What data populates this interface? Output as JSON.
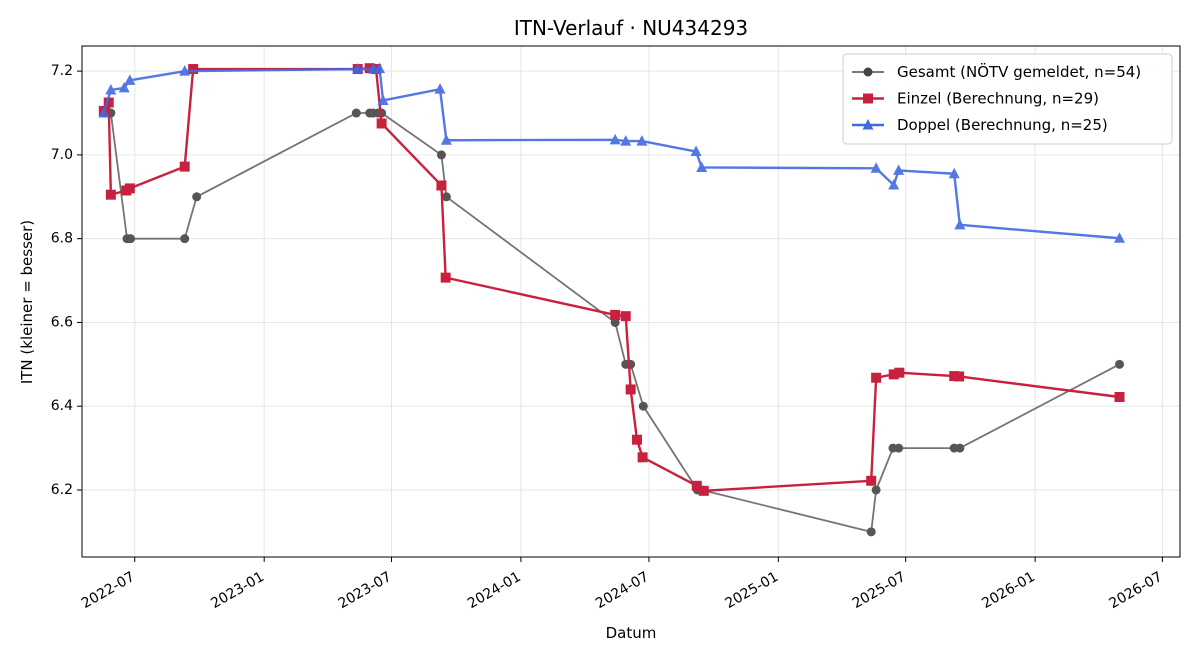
{
  "chart_data": {
    "type": "line",
    "title": "ITN-Verlauf · NU434293",
    "xlabel": "Datum",
    "ylabel": "ITN  (kleiner = besser)",
    "x_axis": "date",
    "xlim": [
      "2022-04-17",
      "2026-07-26"
    ],
    "ylim": [
      6.04,
      7.26
    ],
    "x_ticks": [
      "2022-07-01",
      "2023-01-01",
      "2023-07-01",
      "2024-01-01",
      "2024-07-01",
      "2025-01-01",
      "2025-07-01",
      "2026-01-01",
      "2026-07-01"
    ],
    "x_tick_labels": [
      "2022-07",
      "2023-01",
      "2023-07",
      "2024-01",
      "2024-07",
      "2025-01",
      "2025-07",
      "2026-01",
      "2026-07"
    ],
    "y_ticks": [
      6.2,
      6.4,
      6.6,
      6.8,
      7.0,
      7.2
    ],
    "y_tick_labels": [
      "6.2",
      "6.4",
      "6.6",
      "6.8",
      "7.0",
      "7.2"
    ],
    "grid": true,
    "legend_position": "top-right",
    "series": [
      {
        "name": "Gesamt (NÖTV gemeldet, n=54)",
        "color": "#666666",
        "marker": "circle",
        "points": [
          [
            "2022-05-20",
            7.1
          ],
          [
            "2022-05-28",
            7.1
          ],
          [
            "2022-06-20",
            6.8
          ],
          [
            "2022-06-25",
            6.8
          ],
          [
            "2022-09-10",
            6.8
          ],
          [
            "2022-09-27",
            6.9
          ],
          [
            "2023-05-12",
            7.1
          ],
          [
            "2023-05-31",
            7.1
          ],
          [
            "2023-06-05",
            7.1
          ],
          [
            "2023-06-12",
            7.1
          ],
          [
            "2023-06-17",
            7.1
          ],
          [
            "2023-09-10",
            7.0
          ],
          [
            "2023-09-17",
            6.9
          ],
          [
            "2024-05-14",
            6.6
          ],
          [
            "2024-05-29",
            6.5
          ],
          [
            "2024-06-05",
            6.5
          ],
          [
            "2024-06-23",
            6.4
          ],
          [
            "2024-09-08",
            6.2
          ],
          [
            "2024-09-14",
            6.2
          ],
          [
            "2025-05-13",
            6.1
          ],
          [
            "2025-05-20",
            6.2
          ],
          [
            "2025-06-13",
            6.3
          ],
          [
            "2025-06-21",
            6.3
          ],
          [
            "2025-09-08",
            6.3
          ],
          [
            "2025-09-16",
            6.3
          ],
          [
            "2026-05-01",
            6.5
          ]
        ]
      },
      {
        "name": "Einzel (Berechnung, n=29)",
        "color": "#c8213f",
        "marker": "square",
        "points": [
          [
            "2022-05-18",
            7.105
          ],
          [
            "2022-05-25",
            7.125
          ],
          [
            "2022-05-28",
            6.905
          ],
          [
            "2022-06-19",
            6.915
          ],
          [
            "2022-06-24",
            6.92
          ],
          [
            "2022-09-10",
            6.972
          ],
          [
            "2022-09-22",
            7.205
          ],
          [
            "2023-05-14",
            7.205
          ],
          [
            "2023-05-31",
            7.207
          ],
          [
            "2023-06-09",
            7.205
          ],
          [
            "2023-06-17",
            7.075
          ],
          [
            "2023-09-10",
            6.927
          ],
          [
            "2023-09-16",
            6.707
          ],
          [
            "2024-05-14",
            6.618
          ],
          [
            "2024-05-29",
            6.615
          ],
          [
            "2024-06-05",
            6.44
          ],
          [
            "2024-06-14",
            6.32
          ],
          [
            "2024-06-22",
            6.278
          ],
          [
            "2024-09-07",
            6.21
          ],
          [
            "2024-09-17",
            6.198
          ],
          [
            "2025-05-13",
            6.222
          ],
          [
            "2025-05-20",
            6.468
          ],
          [
            "2025-06-14",
            6.476
          ],
          [
            "2025-06-22",
            6.48
          ],
          [
            "2025-09-08",
            6.472
          ],
          [
            "2025-09-15",
            6.471
          ],
          [
            "2026-05-01",
            6.422
          ]
        ]
      },
      {
        "name": "Doppel (Berechnung, n=25)",
        "color": "#4169e1",
        "marker": "triangle",
        "points": [
          [
            "2022-05-18",
            7.1
          ],
          [
            "2022-05-28",
            7.155
          ],
          [
            "2022-06-16",
            7.16
          ],
          [
            "2022-06-24",
            7.178
          ],
          [
            "2022-09-10",
            7.2
          ],
          [
            "2023-05-14",
            7.205
          ],
          [
            "2023-06-05",
            7.205
          ],
          [
            "2023-06-14",
            7.206
          ],
          [
            "2023-06-19",
            7.13
          ],
          [
            "2023-09-08",
            7.157
          ],
          [
            "2023-09-17",
            7.035
          ],
          [
            "2024-05-14",
            7.036
          ],
          [
            "2024-05-29",
            7.033
          ],
          [
            "2024-06-21",
            7.033
          ],
          [
            "2024-09-06",
            7.008
          ],
          [
            "2024-09-14",
            6.97
          ],
          [
            "2025-05-20",
            6.968
          ],
          [
            "2025-06-14",
            6.928
          ],
          [
            "2025-06-21",
            6.963
          ],
          [
            "2025-09-08",
            6.955
          ],
          [
            "2025-09-16",
            6.833
          ],
          [
            "2026-05-01",
            6.801
          ]
        ]
      }
    ]
  }
}
